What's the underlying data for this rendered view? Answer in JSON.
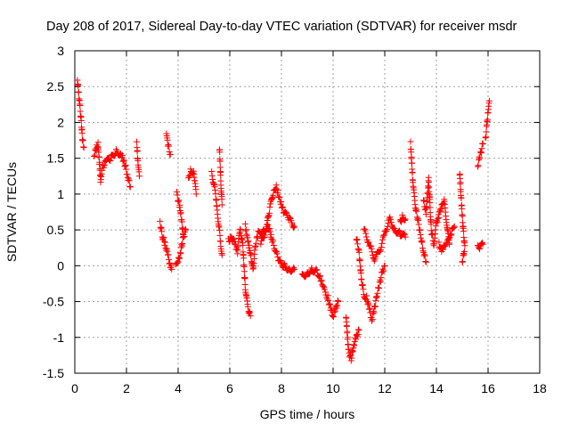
{
  "chart_data": {
    "type": "scatter",
    "title": "Day 208 of 2017, Sidereal Day-to-day VTEC variation (SDTVAR) for receiver msdr",
    "xlabel": "GPS time / hours",
    "ylabel": "SDTVAR / TECUs",
    "xlim": [
      0,
      18
    ],
    "ylim": [
      -1.5,
      3
    ],
    "x_ticks": [
      0,
      2,
      4,
      6,
      8,
      10,
      12,
      14,
      16,
      18
    ],
    "y_ticks": [
      -1.5,
      -1,
      -0.5,
      0,
      0.5,
      1,
      1.5,
      2,
      2.5,
      3
    ],
    "x_tick_labels": [
      "0",
      "2",
      "4",
      "6",
      "8",
      "10",
      "12",
      "14",
      "16",
      "18"
    ],
    "y_tick_labels": [
      "-1.5",
      "-1",
      "-0.5",
      "0",
      "0.5",
      "1",
      "1.5",
      "2",
      "2.5",
      "3"
    ],
    "grid": true,
    "marker": "+",
    "color": "#ff0000",
    "series": [
      {
        "name": "SDTVAR",
        "trace_segments": [
          [
            [
              0.1,
              2.6
            ],
            [
              0.15,
              2.4
            ],
            [
              0.2,
              2.2
            ],
            [
              0.25,
              2.0
            ],
            [
              0.3,
              1.75
            ],
            [
              0.35,
              1.65
            ]
          ],
          [
            [
              0.75,
              1.55
            ],
            [
              0.85,
              1.65
            ],
            [
              0.9,
              1.7
            ],
            [
              1.0,
              1.2
            ],
            [
              1.05,
              1.35
            ],
            [
              1.2,
              1.45
            ],
            [
              1.4,
              1.5
            ],
            [
              1.6,
              1.6
            ],
            [
              1.8,
              1.55
            ],
            [
              1.95,
              1.4
            ],
            [
              2.05,
              1.25
            ],
            [
              2.15,
              1.1
            ]
          ],
          [
            [
              2.4,
              1.7
            ],
            [
              2.45,
              1.4
            ],
            [
              2.5,
              1.25
            ]
          ],
          [
            [
              3.3,
              0.6
            ],
            [
              3.4,
              0.4
            ],
            [
              3.5,
              0.3
            ],
            [
              3.6,
              0.15
            ],
            [
              3.7,
              0.0
            ],
            [
              3.75,
              -0.05
            ]
          ],
          [
            [
              3.55,
              1.85
            ],
            [
              3.6,
              1.7
            ],
            [
              3.7,
              1.55
            ]
          ],
          [
            [
              3.95,
              1.0
            ],
            [
              4.05,
              0.85
            ],
            [
              4.15,
              0.6
            ],
            [
              4.2,
              0.4
            ]
          ],
          [
            [
              3.9,
              0.0
            ],
            [
              4.0,
              0.05
            ],
            [
              4.1,
              0.2
            ],
            [
              4.2,
              0.4
            ],
            [
              4.3,
              0.5
            ]
          ],
          [
            [
              4.4,
              1.2
            ],
            [
              4.5,
              1.35
            ],
            [
              4.6,
              1.3
            ],
            [
              4.65,
              1.15
            ],
            [
              4.7,
              1.0
            ]
          ],
          [
            [
              5.3,
              1.3
            ],
            [
              5.45,
              1.0
            ],
            [
              5.5,
              0.8
            ],
            [
              5.6,
              0.5
            ],
            [
              5.65,
              0.3
            ],
            [
              5.7,
              0.15
            ]
          ],
          [
            [
              5.6,
              1.65
            ],
            [
              5.65,
              1.2
            ],
            [
              5.7,
              0.85
            ]
          ],
          [
            [
              5.95,
              0.35
            ],
            [
              6.1,
              0.4
            ],
            [
              6.2,
              0.3
            ],
            [
              6.3,
              0.2
            ],
            [
              6.4,
              0.5
            ],
            [
              6.5,
              0.3
            ],
            [
              6.6,
              -0.3
            ],
            [
              6.7,
              -0.6
            ],
            [
              6.8,
              -0.7
            ]
          ],
          [
            [
              6.6,
              0.55
            ],
            [
              6.8,
              0.15
            ],
            [
              6.9,
              -0.05
            ],
            [
              7.0,
              0.3
            ],
            [
              7.1,
              0.45
            ],
            [
              7.3,
              0.5
            ],
            [
              7.5,
              0.55
            ],
            [
              7.6,
              0.4
            ],
            [
              7.7,
              0.3
            ],
            [
              7.9,
              0.05
            ],
            [
              8.1,
              0.0
            ],
            [
              8.3,
              -0.05
            ],
            [
              8.5,
              -0.05
            ]
          ],
          [
            [
              7.2,
              0.3
            ],
            [
              7.4,
              0.5
            ],
            [
              7.55,
              0.8
            ],
            [
              7.7,
              1.05
            ],
            [
              7.8,
              1.1
            ],
            [
              7.95,
              0.9
            ],
            [
              8.1,
              0.75
            ],
            [
              8.3,
              0.65
            ],
            [
              8.5,
              0.55
            ]
          ],
          [
            [
              8.8,
              -0.15
            ],
            [
              9.0,
              -0.1
            ],
            [
              9.2,
              -0.05
            ],
            [
              9.4,
              -0.1
            ],
            [
              9.5,
              -0.15
            ],
            [
              9.6,
              -0.3
            ],
            [
              9.8,
              -0.45
            ],
            [
              9.9,
              -0.6
            ],
            [
              10.0,
              -0.7
            ],
            [
              10.1,
              -0.6
            ],
            [
              10.2,
              -0.5
            ]
          ],
          [
            [
              10.5,
              -0.7
            ],
            [
              10.6,
              -1.2
            ],
            [
              10.7,
              -1.3
            ],
            [
              10.8,
              -1.1
            ],
            [
              10.9,
              -1.0
            ],
            [
              11.0,
              -0.9
            ]
          ],
          [
            [
              10.9,
              0.4
            ],
            [
              11.0,
              0.2
            ],
            [
              11.1,
              -0.2
            ],
            [
              11.2,
              -0.4
            ],
            [
              11.3,
              -0.45
            ],
            [
              11.4,
              -0.6
            ],
            [
              11.5,
              -0.75
            ],
            [
              11.6,
              -0.6
            ],
            [
              11.7,
              -0.4
            ],
            [
              11.9,
              -0.1
            ],
            [
              12.0,
              0.0
            ]
          ],
          [
            [
              11.2,
              0.5
            ],
            [
              11.4,
              0.3
            ],
            [
              11.6,
              0.1
            ],
            [
              11.8,
              0.2
            ],
            [
              12.0,
              0.45
            ],
            [
              12.2,
              0.65
            ],
            [
              12.4,
              0.5
            ],
            [
              12.6,
              0.45
            ],
            [
              12.8,
              0.4
            ]
          ],
          [
            [
              12.6,
              0.6
            ],
            [
              12.7,
              0.7
            ],
            [
              12.8,
              0.65
            ]
          ],
          [
            [
              13.0,
              1.7
            ],
            [
              13.05,
              1.4
            ],
            [
              13.1,
              1.1
            ],
            [
              13.2,
              0.8
            ],
            [
              13.3,
              0.6
            ],
            [
              13.4,
              0.4
            ],
            [
              13.5,
              0.2
            ],
            [
              13.6,
              0.05
            ]
          ],
          [
            [
              13.5,
              0.9
            ],
            [
              13.6,
              0.75
            ],
            [
              13.7,
              1.2
            ],
            [
              13.8,
              0.5
            ],
            [
              13.9,
              0.3
            ],
            [
              14.0,
              0.6
            ],
            [
              14.1,
              0.7
            ],
            [
              14.2,
              0.85
            ],
            [
              14.3,
              0.9
            ],
            [
              14.4,
              0.6
            ],
            [
              14.5,
              0.3
            ]
          ],
          [
            [
              14.1,
              0.3
            ],
            [
              14.2,
              0.2
            ],
            [
              14.3,
              0.3
            ],
            [
              14.5,
              0.35
            ],
            [
              14.6,
              0.5
            ],
            [
              14.7,
              0.55
            ]
          ],
          [
            [
              14.9,
              1.3
            ],
            [
              14.95,
              1.0
            ],
            [
              15.0,
              0.7
            ],
            [
              15.05,
              0.45
            ],
            [
              15.1,
              0.25
            ],
            [
              15.0,
              0.05
            ]
          ],
          [
            [
              15.6,
              0.3
            ],
            [
              15.7,
              0.25
            ],
            [
              15.8,
              0.3
            ]
          ],
          [
            [
              15.6,
              1.4
            ],
            [
              15.7,
              1.55
            ],
            [
              15.8,
              1.7
            ]
          ],
          [
            [
              15.9,
              1.75
            ],
            [
              15.95,
              1.95
            ],
            [
              16.0,
              2.15
            ],
            [
              16.05,
              2.3
            ]
          ]
        ]
      }
    ]
  }
}
